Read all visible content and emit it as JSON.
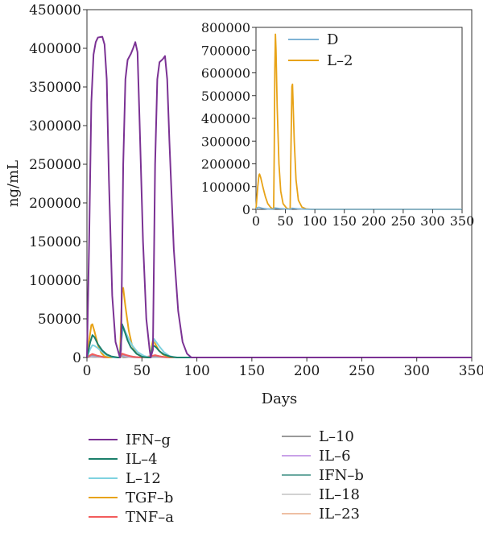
{
  "chart_data": [
    {
      "type": "line",
      "title": "",
      "xlabel": "Days",
      "ylabel": "ng/mL",
      "xlim": [
        0,
        350
      ],
      "ylim": [
        0,
        450000
      ],
      "x_ticks": [
        0,
        50,
        100,
        150,
        200,
        250,
        300,
        350
      ],
      "y_ticks": [
        0,
        50000,
        100000,
        150000,
        200000,
        250000,
        300000,
        350000,
        400000,
        450000
      ],
      "grid": false,
      "legend": "below-chart-two-columns",
      "series": [
        {
          "name": "IFN–g",
          "color": "#7b3294",
          "points": [
            [
              0,
              0
            ],
            [
              2,
              150000
            ],
            [
              4,
              330000
            ],
            [
              6,
              392000
            ],
            [
              8,
              408000
            ],
            [
              10,
              414000
            ],
            [
              14,
              415000
            ],
            [
              16,
              405000
            ],
            [
              18,
              360000
            ],
            [
              20,
              230000
            ],
            [
              23,
              80000
            ],
            [
              26,
              20000
            ],
            [
              29,
              5000
            ],
            [
              30,
              0
            ],
            [
              31,
              10000
            ],
            [
              33,
              250000
            ],
            [
              35,
              360000
            ],
            [
              37,
              385000
            ],
            [
              40,
              393000
            ],
            [
              42,
              400000
            ],
            [
              44,
              408000
            ],
            [
              46,
              395000
            ],
            [
              48,
              300000
            ],
            [
              51,
              150000
            ],
            [
              54,
              50000
            ],
            [
              57,
              10000
            ],
            [
              58,
              0
            ],
            [
              60,
              10000
            ],
            [
              62,
              250000
            ],
            [
              64,
              360000
            ],
            [
              66,
              382000
            ],
            [
              69,
              386000
            ],
            [
              71,
              390000
            ],
            [
              73,
              360000
            ],
            [
              75,
              280000
            ],
            [
              79,
              140000
            ],
            [
              83,
              60000
            ],
            [
              87,
              20000
            ],
            [
              91,
              5000
            ],
            [
              95,
              0
            ],
            [
              100,
              0
            ],
            [
              350,
              0
            ]
          ]
        },
        {
          "name": "IL–4",
          "color": "#1b7f6b",
          "points": [
            [
              0,
              0
            ],
            [
              3,
              20000
            ],
            [
              5,
              29000
            ],
            [
              7,
              26000
            ],
            [
              10,
              17000
            ],
            [
              14,
              9000
            ],
            [
              18,
              4000
            ],
            [
              22,
              1500
            ],
            [
              28,
              0
            ],
            [
              30,
              0
            ],
            [
              31,
              20000
            ],
            [
              32,
              43000
            ],
            [
              34,
              35000
            ],
            [
              37,
              22000
            ],
            [
              40,
              13000
            ],
            [
              45,
              5000
            ],
            [
              50,
              1000
            ],
            [
              55,
              0
            ],
            [
              58,
              0
            ],
            [
              59,
              8000
            ],
            [
              60,
              16000
            ],
            [
              63,
              13000
            ],
            [
              66,
              8000
            ],
            [
              70,
              4000
            ],
            [
              76,
              1000
            ],
            [
              82,
              0
            ],
            [
              350,
              0
            ]
          ]
        },
        {
          "name": "L–12",
          "color": "#7fd2e0",
          "points": [
            [
              0,
              0
            ],
            [
              3,
              11000
            ],
            [
              5,
              16000
            ],
            [
              7,
              15000
            ],
            [
              10,
              12000
            ],
            [
              14,
              7000
            ],
            [
              18,
              3000
            ],
            [
              24,
              0
            ],
            [
              30,
              0
            ],
            [
              31,
              18000
            ],
            [
              33,
              40000
            ],
            [
              35,
              33000
            ],
            [
              38,
              24000
            ],
            [
              42,
              14000
            ],
            [
              46,
              7000
            ],
            [
              52,
              2000
            ],
            [
              57,
              0
            ],
            [
              58,
              0
            ],
            [
              59,
              10000
            ],
            [
              61,
              24000
            ],
            [
              63,
              20000
            ],
            [
              66,
              14000
            ],
            [
              70,
              7000
            ],
            [
              75,
              2000
            ],
            [
              80,
              0
            ],
            [
              350,
              0
            ]
          ]
        },
        {
          "name": "TGF–b",
          "color": "#e8a317",
          "points": [
            [
              0,
              0
            ],
            [
              2,
              22000
            ],
            [
              4,
              42000
            ],
            [
              5,
              43000
            ],
            [
              7,
              33000
            ],
            [
              10,
              16000
            ],
            [
              13,
              6000
            ],
            [
              16,
              1500
            ],
            [
              20,
              0
            ],
            [
              30,
              0
            ],
            [
              31,
              45000
            ],
            [
              32,
              88000
            ],
            [
              33,
              90000
            ],
            [
              35,
              66000
            ],
            [
              38,
              35000
            ],
            [
              41,
              16000
            ],
            [
              45,
              5000
            ],
            [
              50,
              1000
            ],
            [
              55,
              0
            ],
            [
              58,
              0
            ],
            [
              59,
              15000
            ],
            [
              60,
              22000
            ],
            [
              62,
              18000
            ],
            [
              65,
              10000
            ],
            [
              69,
              4000
            ],
            [
              74,
              1000
            ],
            [
              80,
              0
            ],
            [
              350,
              0
            ]
          ]
        },
        {
          "name": "TNF–a",
          "color": "#f25c5c",
          "points": [
            [
              0,
              0
            ],
            [
              3,
              3000
            ],
            [
              5,
              4500
            ],
            [
              9,
              2500
            ],
            [
              15,
              500
            ],
            [
              22,
              0
            ],
            [
              30,
              0
            ],
            [
              32,
              5000
            ],
            [
              36,
              3000
            ],
            [
              42,
              800
            ],
            [
              50,
              0
            ],
            [
              59,
              2000
            ],
            [
              62,
              3000
            ],
            [
              68,
              1000
            ],
            [
              75,
              0
            ],
            [
              350,
              0
            ]
          ]
        },
        {
          "name": "L–10",
          "color": "#9a9a9a",
          "points": [
            [
              0,
              0
            ],
            [
              4,
              3000
            ],
            [
              8,
              2500
            ],
            [
              15,
              800
            ],
            [
              22,
              0
            ],
            [
              30,
              0
            ],
            [
              32,
              4000
            ],
            [
              38,
              2000
            ],
            [
              46,
              300
            ],
            [
              52,
              0
            ],
            [
              59,
              1500
            ],
            [
              63,
              2200
            ],
            [
              70,
              700
            ],
            [
              78,
              0
            ],
            [
              350,
              0
            ]
          ]
        },
        {
          "name": "IL–6",
          "color": "#c9a2e8",
          "points": [
            [
              0,
              0
            ],
            [
              4,
              2000
            ],
            [
              8,
              1800
            ],
            [
              15,
              400
            ],
            [
              22,
              0
            ],
            [
              30,
              0
            ],
            [
              32,
              3000
            ],
            [
              38,
              1200
            ],
            [
              46,
              0
            ],
            [
              59,
              1000
            ],
            [
              63,
              1600
            ],
            [
              72,
              200
            ],
            [
              78,
              0
            ],
            [
              350,
              0
            ]
          ]
        },
        {
          "name": "IFN–b",
          "color": "#6aa9a0",
          "points": [
            [
              0,
              0
            ],
            [
              4,
              1500
            ],
            [
              9,
              1200
            ],
            [
              16,
              300
            ],
            [
              22,
              0
            ],
            [
              30,
              0
            ],
            [
              32,
              2000
            ],
            [
              40,
              600
            ],
            [
              48,
              0
            ],
            [
              60,
              800
            ],
            [
              66,
              900
            ],
            [
              74,
              100
            ],
            [
              80,
              0
            ],
            [
              350,
              0
            ]
          ]
        },
        {
          "name": "IL–18",
          "color": "#d2d2d2",
          "points": [
            [
              0,
              0
            ],
            [
              5,
              1000
            ],
            [
              10,
              800
            ],
            [
              18,
              100
            ],
            [
              24,
              0
            ],
            [
              30,
              0
            ],
            [
              33,
              1500
            ],
            [
              42,
              300
            ],
            [
              50,
              0
            ],
            [
              60,
              600
            ],
            [
              67,
              500
            ],
            [
              76,
              0
            ],
            [
              350,
              0
            ]
          ]
        },
        {
          "name": "IL–23",
          "color": "#efbfa3",
          "points": [
            [
              0,
              0
            ],
            [
              5,
              700
            ],
            [
              11,
              600
            ],
            [
              19,
              80
            ],
            [
              25,
              0
            ],
            [
              30,
              0
            ],
            [
              33,
              1100
            ],
            [
              43,
              200
            ],
            [
              51,
              0
            ],
            [
              61,
              400
            ],
            [
              68,
              350
            ],
            [
              77,
              0
            ],
            [
              350,
              0
            ]
          ]
        }
      ]
    },
    {
      "type": "line",
      "title": "",
      "xlabel": "",
      "ylabel": "",
      "xlim": [
        0,
        350
      ],
      "ylim": [
        0,
        800000
      ],
      "x_ticks": [
        0,
        50,
        100,
        150,
        200,
        250,
        300,
        350
      ],
      "y_ticks": [
        0,
        100000,
        200000,
        300000,
        400000,
        500000,
        600000,
        700000,
        800000
      ],
      "grid": false,
      "legend": "top-left",
      "series": [
        {
          "name": "D",
          "color": "#7fb3d5",
          "points": [
            [
              0,
              0
            ],
            [
              2,
              7000
            ],
            [
              5,
              9000
            ],
            [
              10,
              5000
            ],
            [
              20,
              1500
            ],
            [
              30,
              500
            ],
            [
              32,
              6000
            ],
            [
              40,
              3500
            ],
            [
              50,
              1500
            ],
            [
              59,
              500
            ],
            [
              61,
              5000
            ],
            [
              70,
              2500
            ],
            [
              85,
              500
            ],
            [
              100,
              0
            ],
            [
              350,
              0
            ]
          ]
        },
        {
          "name": "L–2",
          "color": "#e8a317",
          "points": [
            [
              0,
              0
            ],
            [
              3,
              100000
            ],
            [
              5,
              150000
            ],
            [
              6,
              155000
            ],
            [
              8,
              140000
            ],
            [
              12,
              95000
            ],
            [
              16,
              55000
            ],
            [
              20,
              25000
            ],
            [
              25,
              8000
            ],
            [
              30,
              0
            ],
            [
              31,
              250000
            ],
            [
              32,
              620000
            ],
            [
              33,
              770000
            ],
            [
              34,
              700000
            ],
            [
              36,
              450000
            ],
            [
              39,
              200000
            ],
            [
              42,
              80000
            ],
            [
              46,
              25000
            ],
            [
              52,
              5000
            ],
            [
              58,
              0
            ],
            [
              59,
              200000
            ],
            [
              61,
              540000
            ],
            [
              62,
              550000
            ],
            [
              63,
              470000
            ],
            [
              65,
              300000
            ],
            [
              68,
              130000
            ],
            [
              72,
              40000
            ],
            [
              78,
              10000
            ],
            [
              85,
              2000
            ],
            [
              95,
              0
            ],
            [
              350,
              0
            ]
          ]
        }
      ]
    }
  ]
}
